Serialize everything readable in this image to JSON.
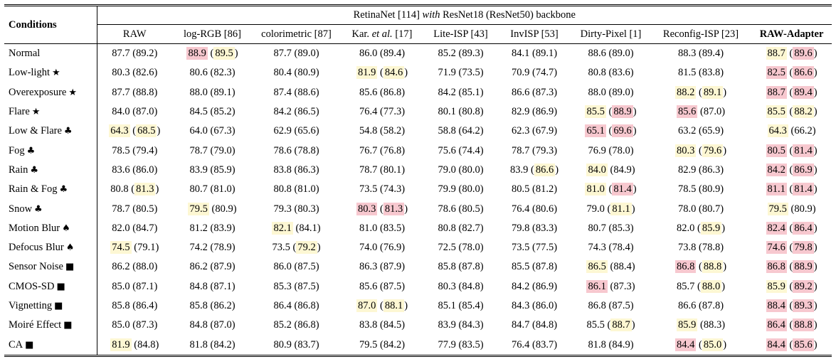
{
  "header": {
    "conditions_label": "Conditions",
    "super_prefix": "RetinaNet [114] ",
    "super_italic": "with",
    "super_suffix": " ResNet18 (ResNet50) backbone",
    "columns": [
      {
        "label": "RAW"
      },
      {
        "label": "log-RGB [86]"
      },
      {
        "label": "colorimetric [87]"
      },
      {
        "label_pre": "Kar. ",
        "label_it": "et al.",
        "label_post": " [17]"
      },
      {
        "label": "Lite-ISP [43]"
      },
      {
        "label": "InvISP [53]"
      },
      {
        "label": "Dirty-Pixel [1]"
      },
      {
        "label": "Reconfig-ISP [23]"
      },
      {
        "label": "RAW-Adapter",
        "bold": true
      }
    ]
  },
  "rows": [
    {
      "name": "Normal",
      "sym": "",
      "cells": [
        [
          "87.7",
          "89.2",
          "",
          ""
        ],
        [
          "88.9",
          "89.5",
          "r",
          "y"
        ],
        [
          "87.7",
          "89.0",
          "",
          ""
        ],
        [
          "86.0",
          "89.4",
          "",
          ""
        ],
        [
          "85.2",
          "89.3",
          "",
          ""
        ],
        [
          "84.1",
          "89.1",
          "",
          ""
        ],
        [
          "88.6",
          "89.0",
          "",
          ""
        ],
        [
          "88.3",
          "89.4",
          "",
          ""
        ],
        [
          "88.7",
          "89.6",
          "y",
          "r"
        ]
      ]
    },
    {
      "name": "Low-light",
      "sym": "★",
      "cells": [
        [
          "80.3",
          "82.6",
          "",
          ""
        ],
        [
          "80.6",
          "82.3",
          "",
          ""
        ],
        [
          "80.4",
          "80.9",
          "",
          ""
        ],
        [
          "81.9",
          "84.6",
          "y",
          "y"
        ],
        [
          "71.9",
          "73.5",
          "",
          ""
        ],
        [
          "70.9",
          "74.7",
          "",
          ""
        ],
        [
          "80.8",
          "83.6",
          "",
          ""
        ],
        [
          "81.5",
          "83.8",
          "",
          ""
        ],
        [
          "82.5",
          "86.6",
          "r",
          "r"
        ]
      ]
    },
    {
      "name": "Overexposure",
      "sym": "★",
      "cells": [
        [
          "87.7",
          "88.8",
          "",
          ""
        ],
        [
          "88.0",
          "89.1",
          "",
          ""
        ],
        [
          "87.4",
          "88.6",
          "",
          ""
        ],
        [
          "85.6",
          "86.8",
          "",
          ""
        ],
        [
          "84.2",
          "85.1",
          "",
          ""
        ],
        [
          "86.6",
          "87.3",
          "",
          ""
        ],
        [
          "88.0",
          "89.0",
          "",
          ""
        ],
        [
          "88.2",
          "89.1",
          "y",
          "y"
        ],
        [
          "88.7",
          "89.4",
          "r",
          "r"
        ]
      ]
    },
    {
      "name": "Flare",
      "sym": "★",
      "cells": [
        [
          "84.0",
          "87.0",
          "",
          ""
        ],
        [
          "84.5",
          "85.2",
          "",
          ""
        ],
        [
          "84.2",
          "86.5",
          "",
          ""
        ],
        [
          "76.4",
          "77.3",
          "",
          ""
        ],
        [
          "80.1",
          "80.8",
          "",
          ""
        ],
        [
          "82.9",
          "86.9",
          "",
          ""
        ],
        [
          "85.5",
          "88.9",
          "y",
          "r"
        ],
        [
          "85.6",
          "87.0",
          "r",
          ""
        ],
        [
          "85.5",
          "88.2",
          "y",
          "y"
        ]
      ]
    },
    {
      "name": "Low & Flare",
      "sym": "♣",
      "cells": [
        [
          "64.3",
          "68.5",
          "y",
          "y"
        ],
        [
          "64.0",
          "67.3",
          "",
          ""
        ],
        [
          "62.9",
          "65.6",
          "",
          ""
        ],
        [
          "54.8",
          "58.2",
          "",
          ""
        ],
        [
          "58.8",
          "64.2",
          "",
          ""
        ],
        [
          "62.3",
          "67.9",
          "",
          ""
        ],
        [
          "65.1",
          "69.6",
          "r",
          "r"
        ],
        [
          "63.2",
          "65.9",
          "",
          ""
        ],
        [
          "64.3",
          "66.2",
          "y",
          ""
        ]
      ]
    },
    {
      "name": "Fog",
      "sym": "♣",
      "cells": [
        [
          "78.5",
          "79.4",
          "",
          ""
        ],
        [
          "78.7",
          "79.0",
          "",
          ""
        ],
        [
          "78.6",
          "78.8",
          "",
          ""
        ],
        [
          "76.7",
          "76.8",
          "",
          ""
        ],
        [
          "75.6",
          "74.4",
          "",
          ""
        ],
        [
          "78.7",
          "79.3",
          "",
          ""
        ],
        [
          "76.9",
          "78.0",
          "",
          ""
        ],
        [
          "80.3",
          "79.6",
          "y",
          "y"
        ],
        [
          "80.5",
          "81.4",
          "r",
          "r"
        ]
      ]
    },
    {
      "name": "Rain",
      "sym": "♣",
      "cells": [
        [
          "83.6",
          "86.0",
          "",
          ""
        ],
        [
          "83.9",
          "85.9",
          "",
          ""
        ],
        [
          "83.8",
          "86.3",
          "",
          ""
        ],
        [
          "78.7",
          "80.1",
          "",
          ""
        ],
        [
          "79.0",
          "80.0",
          "",
          ""
        ],
        [
          "83.9",
          "86.6",
          "",
          "y"
        ],
        [
          "84.0",
          "84.9",
          "y",
          ""
        ],
        [
          "82.9",
          "86.3",
          "",
          ""
        ],
        [
          "84.2",
          "86.9",
          "r",
          "r"
        ]
      ]
    },
    {
      "name": "Rain & Fog",
      "sym": "♣",
      "cells": [
        [
          "80.8",
          "81.3",
          "",
          "y"
        ],
        [
          "80.7",
          "81.0",
          "",
          ""
        ],
        [
          "80.8",
          "81.0",
          "",
          ""
        ],
        [
          "73.5",
          "74.3",
          "",
          ""
        ],
        [
          "79.9",
          "80.0",
          "",
          ""
        ],
        [
          "80.5",
          "81.2",
          "",
          ""
        ],
        [
          "81.0",
          "81.4",
          "y",
          "r"
        ],
        [
          "78.5",
          "80.9",
          "",
          ""
        ],
        [
          "81.1",
          "81.4",
          "r",
          "r"
        ]
      ]
    },
    {
      "name": "Snow",
      "sym": "♣",
      "cells": [
        [
          "78.7",
          "80.5",
          "",
          ""
        ],
        [
          "79.5",
          "80.9",
          "y",
          ""
        ],
        [
          "79.3",
          "80.3",
          "",
          ""
        ],
        [
          "80.3",
          "81.3",
          "r",
          "r"
        ],
        [
          "78.6",
          "80.5",
          "",
          ""
        ],
        [
          "76.4",
          "80.6",
          "",
          ""
        ],
        [
          "79.0",
          "81.1",
          "",
          "y"
        ],
        [
          "78.0",
          "80.7",
          "",
          ""
        ],
        [
          "79.5",
          "80.9",
          "y",
          ""
        ]
      ]
    },
    {
      "name": "Motion Blur",
      "sym": "♠",
      "cells": [
        [
          "82.0",
          "84.7",
          "",
          ""
        ],
        [
          "81.2",
          "83.9",
          "",
          ""
        ],
        [
          "82.1",
          "84.1",
          "y",
          ""
        ],
        [
          "81.0",
          "83.5",
          "",
          ""
        ],
        [
          "80.8",
          "82.7",
          "",
          ""
        ],
        [
          "79.8",
          "83.3",
          "",
          ""
        ],
        [
          "80.7",
          "85.3",
          "",
          ""
        ],
        [
          "82.0",
          "85.9",
          "",
          "y"
        ],
        [
          "82.4",
          "86.4",
          "r",
          "r"
        ]
      ]
    },
    {
      "name": "Defocus Blur",
      "sym": "♠",
      "cells": [
        [
          "74.5",
          "79.1",
          "y",
          ""
        ],
        [
          "74.2",
          "78.9",
          "",
          ""
        ],
        [
          "73.5",
          "79.2",
          "",
          "y"
        ],
        [
          "74.0",
          "76.9",
          "",
          ""
        ],
        [
          "72.5",
          "78.0",
          "",
          ""
        ],
        [
          "73.5",
          "77.5",
          "",
          ""
        ],
        [
          "74.3",
          "78.4",
          "",
          ""
        ],
        [
          "73.8",
          "78.8",
          "",
          ""
        ],
        [
          "74.6",
          "79.8",
          "r",
          "r"
        ]
      ]
    },
    {
      "name": "Sensor Noise",
      "sym": "■",
      "cells": [
        [
          "86.2",
          "88.0",
          "",
          ""
        ],
        [
          "86.2",
          "87.9",
          "",
          ""
        ],
        [
          "86.0",
          "87.5",
          "",
          ""
        ],
        [
          "86.3",
          "87.9",
          "",
          ""
        ],
        [
          "85.8",
          "87.8",
          "",
          ""
        ],
        [
          "85.5",
          "87.8",
          "",
          ""
        ],
        [
          "86.5",
          "88.4",
          "y",
          ""
        ],
        [
          "86.8",
          "88.8",
          "r",
          "y"
        ],
        [
          "86.8",
          "88.9",
          "r",
          "r"
        ]
      ]
    },
    {
      "name": "CMOS-SD",
      "sym": "■",
      "cells": [
        [
          "85.0",
          "87.1",
          "",
          ""
        ],
        [
          "84.8",
          "87.1",
          "",
          ""
        ],
        [
          "85.3",
          "87.5",
          "",
          ""
        ],
        [
          "85.6",
          "87.5",
          "",
          ""
        ],
        [
          "80.3",
          "84.8",
          "",
          ""
        ],
        [
          "84.2",
          "86.9",
          "",
          ""
        ],
        [
          "86.1",
          "87.3",
          "r",
          ""
        ],
        [
          "85.7",
          "88.0",
          "",
          "y"
        ],
        [
          "85.9",
          "89.2",
          "y",
          "r"
        ]
      ]
    },
    {
      "name": "Vignetting",
      "sym": "■",
      "cells": [
        [
          "85.8",
          "86.4",
          "",
          ""
        ],
        [
          "85.8",
          "86.2",
          "",
          ""
        ],
        [
          "86.4",
          "86.8",
          "",
          ""
        ],
        [
          "87.0",
          "88.1",
          "y",
          "y"
        ],
        [
          "85.1",
          "85.4",
          "",
          ""
        ],
        [
          "84.3",
          "86.0",
          "",
          ""
        ],
        [
          "86.8",
          "87.5",
          "",
          ""
        ],
        [
          "86.6",
          "87.8",
          "",
          ""
        ],
        [
          "88.4",
          "89.3",
          "r",
          "r"
        ]
      ]
    },
    {
      "name": "Moiré Effect",
      "sym": "■",
      "cells": [
        [
          "85.0",
          "87.3",
          "",
          ""
        ],
        [
          "84.8",
          "87.0",
          "",
          ""
        ],
        [
          "85.2",
          "86.8",
          "",
          ""
        ],
        [
          "83.8",
          "84.5",
          "",
          ""
        ],
        [
          "83.9",
          "84.3",
          "",
          ""
        ],
        [
          "84.7",
          "84.8",
          "",
          ""
        ],
        [
          "85.5",
          "88.7",
          "",
          "y"
        ],
        [
          "85.9",
          "88.3",
          "y",
          ""
        ],
        [
          "86.4",
          "88.8",
          "r",
          "r"
        ]
      ]
    },
    {
      "name": "CA",
      "sym": "■",
      "cells": [
        [
          "81.9",
          "84.8",
          "y",
          ""
        ],
        [
          "81.8",
          "84.2",
          "",
          ""
        ],
        [
          "80.9",
          "83.7",
          "",
          ""
        ],
        [
          "79.5",
          "84.2",
          "",
          ""
        ],
        [
          "77.9",
          "83.5",
          "",
          ""
        ],
        [
          "76.4",
          "83.7",
          "",
          ""
        ],
        [
          "81.8",
          "84.9",
          "",
          ""
        ],
        [
          "84.4",
          "85.0",
          "r",
          "y"
        ],
        [
          "84.4",
          "85.6",
          "r",
          "r"
        ]
      ]
    }
  ],
  "colors": {
    "first_best": "#f7c8cf",
    "second_best": "#fdf7d3"
  }
}
